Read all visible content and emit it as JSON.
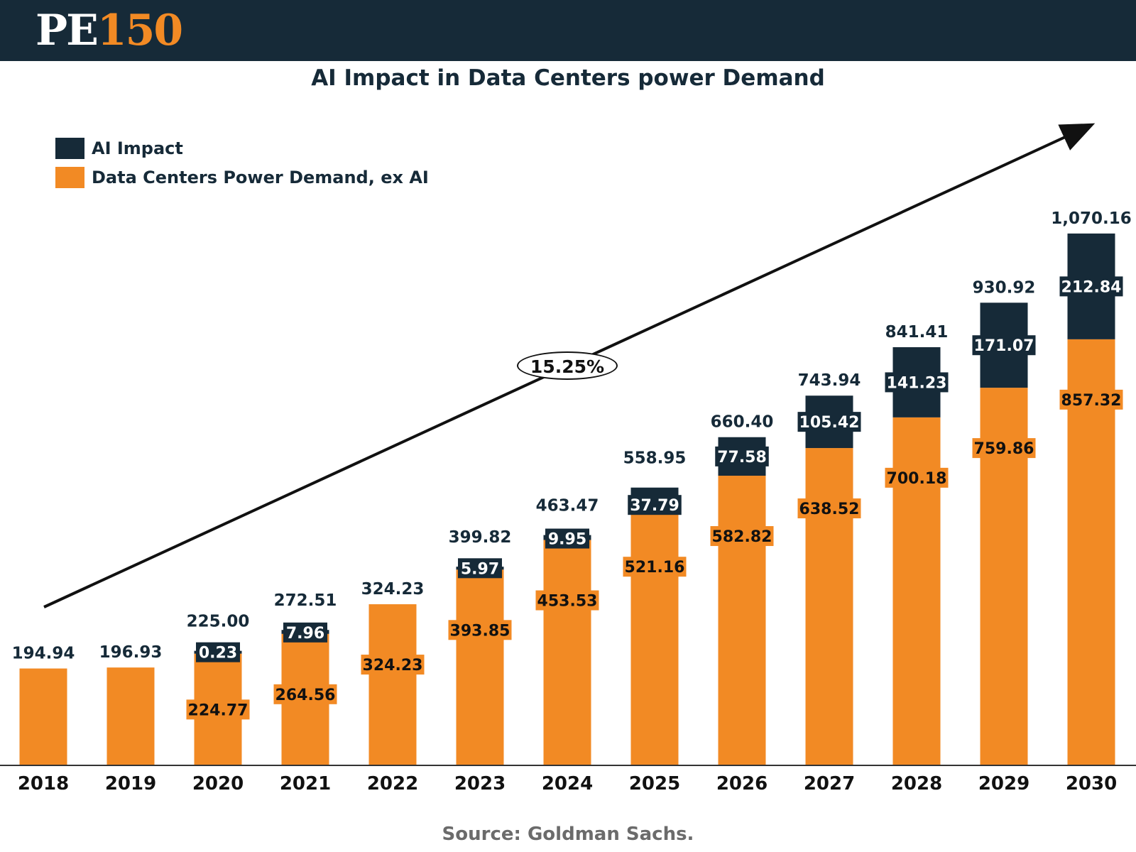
{
  "brand": {
    "logo_pe": "PE",
    "logo_num": "150"
  },
  "title": "AI Impact in Data Centers power Demand",
  "source": "Source: Goldman Sachs.",
  "annotation": {
    "cagr": "15.25%"
  },
  "colors": {
    "ai": "#162a38",
    "base": "#f28a24",
    "header": "#162a38"
  },
  "chart_data": {
    "type": "bar",
    "stacked": true,
    "title": "AI Impact in Data Centers power Demand",
    "xlabel": "",
    "ylabel": "",
    "ylim": [
      0,
      1200
    ],
    "grid": false,
    "legend_position": "top-left",
    "categories": [
      "2018",
      "2019",
      "2020",
      "2021",
      "2022",
      "2023",
      "2024",
      "2025",
      "2026",
      "2027",
      "2028",
      "2029",
      "2030"
    ],
    "series": [
      {
        "name": "Data Centers Power Demand, ex AI",
        "color": "#f28a24",
        "values": [
          194.94,
          196.93,
          224.77,
          264.56,
          324.23,
          393.85,
          453.53,
          521.16,
          582.82,
          638.52,
          700.18,
          759.86,
          857.32
        ],
        "labels": [
          "",
          "",
          "224.77",
          "264.56",
          "324.23",
          "393.85",
          "453.53",
          "521.16",
          "582.82",
          "638.52",
          "700.18",
          "759.86",
          "857.32"
        ]
      },
      {
        "name": "AI Impact",
        "color": "#162a38",
        "values": [
          0,
          0,
          0.23,
          7.96,
          0,
          5.97,
          9.95,
          37.79,
          77.58,
          105.42,
          141.23,
          171.07,
          212.84
        ],
        "labels": [
          "",
          "",
          "0.23",
          "7.96",
          "",
          "5.97",
          "9.95",
          "37.79",
          "77.58",
          "105.42",
          "141.23",
          "171.07",
          "212.84"
        ]
      }
    ],
    "totals": [
      "194.94",
      "196.93",
      "225.00",
      "272.51",
      "324.23",
      "399.82",
      "463.47",
      "558.95",
      "660.40",
      "743.94",
      "841.41",
      "930.92",
      "1,070.16"
    ]
  }
}
